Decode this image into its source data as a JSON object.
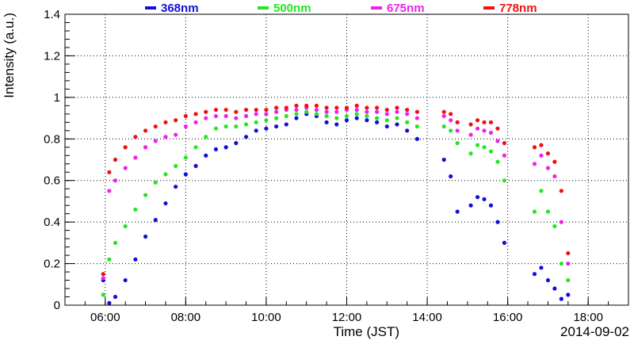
{
  "chart_data": {
    "type": "scatter",
    "title": "",
    "xlabel": "Time (JST)",
    "ylabel": "Intensity (a.u.)",
    "date_label": "2014-09-02",
    "xlim": [
      "05:00",
      "19:00"
    ],
    "ylim": [
      0,
      1.4
    ],
    "x_ticks": [
      "06:00",
      "08:00",
      "10:00",
      "12:00",
      "14:00",
      "16:00",
      "18:00"
    ],
    "y_ticks": [
      "0",
      "0.2",
      "0.4",
      "0.6",
      "0.8",
      "1",
      "1.2",
      "1.4"
    ],
    "grid": true,
    "legend_position": "top",
    "series": [
      {
        "name": "368nm",
        "color": "#1010d8",
        "points": [
          [
            "05:57",
            0.12
          ],
          [
            "06:06",
            0.01
          ],
          [
            "06:15",
            0.04
          ],
          [
            "06:30",
            0.12
          ],
          [
            "06:45",
            0.22
          ],
          [
            "07:00",
            0.33
          ],
          [
            "07:15",
            0.41
          ],
          [
            "07:30",
            0.49
          ],
          [
            "07:45",
            0.57
          ],
          [
            "08:00",
            0.63
          ],
          [
            "08:15",
            0.67
          ],
          [
            "08:30",
            0.72
          ],
          [
            "08:45",
            0.75
          ],
          [
            "09:00",
            0.76
          ],
          [
            "09:15",
            0.78
          ],
          [
            "09:30",
            0.81
          ],
          [
            "09:45",
            0.84
          ],
          [
            "10:00",
            0.85
          ],
          [
            "10:15",
            0.86
          ],
          [
            "10:30",
            0.87
          ],
          [
            "10:45",
            0.9
          ],
          [
            "11:00",
            0.92
          ],
          [
            "11:15",
            0.91
          ],
          [
            "11:30",
            0.88
          ],
          [
            "11:45",
            0.87
          ],
          [
            "12:00",
            0.89
          ],
          [
            "12:15",
            0.9
          ],
          [
            "12:30",
            0.89
          ],
          [
            "12:45",
            0.88
          ],
          [
            "13:00",
            0.86
          ],
          [
            "13:15",
            0.87
          ],
          [
            "13:30",
            0.84
          ],
          [
            "13:45",
            0.8
          ],
          [
            "14:25",
            0.7
          ],
          [
            "14:35",
            0.62
          ],
          [
            "14:45",
            0.45
          ],
          [
            "15:05",
            0.48
          ],
          [
            "15:15",
            0.52
          ],
          [
            "15:25",
            0.51
          ],
          [
            "15:35",
            0.48
          ],
          [
            "15:45",
            0.4
          ],
          [
            "15:55",
            0.3
          ],
          [
            "16:40",
            0.15
          ],
          [
            "16:50",
            0.18
          ],
          [
            "17:00",
            0.12
          ],
          [
            "17:10",
            0.08
          ],
          [
            "17:20",
            0.03
          ],
          [
            "17:30",
            0.05
          ]
        ]
      },
      {
        "name": "500nm",
        "color": "#22e822",
        "points": [
          [
            "05:57",
            0.05
          ],
          [
            "06:06",
            0.22
          ],
          [
            "06:15",
            0.3
          ],
          [
            "06:30",
            0.38
          ],
          [
            "06:45",
            0.46
          ],
          [
            "07:00",
            0.53
          ],
          [
            "07:15",
            0.59
          ],
          [
            "07:30",
            0.63
          ],
          [
            "07:45",
            0.67
          ],
          [
            "08:00",
            0.71
          ],
          [
            "08:15",
            0.76
          ],
          [
            "08:30",
            0.81
          ],
          [
            "08:45",
            0.85
          ],
          [
            "09:00",
            0.86
          ],
          [
            "09:15",
            0.86
          ],
          [
            "09:30",
            0.87
          ],
          [
            "09:45",
            0.88
          ],
          [
            "10:00",
            0.89
          ],
          [
            "10:15",
            0.9
          ],
          [
            "10:30",
            0.91
          ],
          [
            "10:45",
            0.92
          ],
          [
            "11:00",
            0.93
          ],
          [
            "11:15",
            0.92
          ],
          [
            "11:30",
            0.91
          ],
          [
            "11:45",
            0.9
          ],
          [
            "12:00",
            0.91
          ],
          [
            "12:15",
            0.92
          ],
          [
            "12:30",
            0.91
          ],
          [
            "12:45",
            0.9
          ],
          [
            "13:00",
            0.89
          ],
          [
            "13:15",
            0.9
          ],
          [
            "13:30",
            0.88
          ],
          [
            "13:45",
            0.86
          ],
          [
            "14:25",
            0.86
          ],
          [
            "14:35",
            0.84
          ],
          [
            "14:45",
            0.78
          ],
          [
            "15:05",
            0.73
          ],
          [
            "15:15",
            0.77
          ],
          [
            "15:25",
            0.76
          ],
          [
            "15:35",
            0.74
          ],
          [
            "15:45",
            0.69
          ],
          [
            "15:55",
            0.6
          ],
          [
            "16:40",
            0.45
          ],
          [
            "16:50",
            0.55
          ],
          [
            "17:00",
            0.45
          ],
          [
            "17:10",
            0.38
          ],
          [
            "17:20",
            0.2
          ],
          [
            "17:30",
            0.12
          ]
        ]
      },
      {
        "name": "675nm",
        "color": "#f020f0",
        "points": [
          [
            "05:57",
            0.13
          ],
          [
            "06:06",
            0.55
          ],
          [
            "06:15",
            0.6
          ],
          [
            "06:30",
            0.66
          ],
          [
            "06:45",
            0.71
          ],
          [
            "07:00",
            0.76
          ],
          [
            "07:15",
            0.79
          ],
          [
            "07:30",
            0.81
          ],
          [
            "07:45",
            0.82
          ],
          [
            "08:00",
            0.86
          ],
          [
            "08:15",
            0.88
          ],
          [
            "08:30",
            0.9
          ],
          [
            "08:45",
            0.91
          ],
          [
            "09:00",
            0.91
          ],
          [
            "09:15",
            0.9
          ],
          [
            "09:30",
            0.91
          ],
          [
            "09:45",
            0.92
          ],
          [
            "10:00",
            0.92
          ],
          [
            "10:15",
            0.93
          ],
          [
            "10:30",
            0.94
          ],
          [
            "10:45",
            0.94
          ],
          [
            "11:00",
            0.95
          ],
          [
            "11:15",
            0.94
          ],
          [
            "11:30",
            0.93
          ],
          [
            "11:45",
            0.93
          ],
          [
            "12:00",
            0.94
          ],
          [
            "12:15",
            0.94
          ],
          [
            "12:30",
            0.93
          ],
          [
            "12:45",
            0.93
          ],
          [
            "13:00",
            0.92
          ],
          [
            "13:15",
            0.93
          ],
          [
            "13:30",
            0.92
          ],
          [
            "13:45",
            0.9
          ],
          [
            "14:25",
            0.91
          ],
          [
            "14:35",
            0.89
          ],
          [
            "14:45",
            0.84
          ],
          [
            "15:05",
            0.82
          ],
          [
            "15:15",
            0.85
          ],
          [
            "15:25",
            0.84
          ],
          [
            "15:35",
            0.83
          ],
          [
            "15:45",
            0.79
          ],
          [
            "15:55",
            0.72
          ],
          [
            "16:40",
            0.68
          ],
          [
            "16:50",
            0.72
          ],
          [
            "17:00",
            0.66
          ],
          [
            "17:10",
            0.62
          ],
          [
            "17:20",
            0.4
          ],
          [
            "17:30",
            0.2
          ]
        ]
      },
      {
        "name": "778nm",
        "color": "#f01010",
        "points": [
          [
            "05:57",
            0.15
          ],
          [
            "06:06",
            0.64
          ],
          [
            "06:15",
            0.7
          ],
          [
            "06:30",
            0.76
          ],
          [
            "06:45",
            0.81
          ],
          [
            "07:00",
            0.84
          ],
          [
            "07:15",
            0.86
          ],
          [
            "07:30",
            0.88
          ],
          [
            "07:45",
            0.89
          ],
          [
            "08:00",
            0.91
          ],
          [
            "08:15",
            0.92
          ],
          [
            "08:30",
            0.93
          ],
          [
            "08:45",
            0.94
          ],
          [
            "09:00",
            0.94
          ],
          [
            "09:15",
            0.93
          ],
          [
            "09:30",
            0.94
          ],
          [
            "09:45",
            0.94
          ],
          [
            "10:00",
            0.94
          ],
          [
            "10:15",
            0.95
          ],
          [
            "10:30",
            0.95
          ],
          [
            "10:45",
            0.96
          ],
          [
            "11:00",
            0.96
          ],
          [
            "11:15",
            0.96
          ],
          [
            "11:30",
            0.95
          ],
          [
            "11:45",
            0.95
          ],
          [
            "12:00",
            0.95
          ],
          [
            "12:15",
            0.96
          ],
          [
            "12:30",
            0.95
          ],
          [
            "12:45",
            0.95
          ],
          [
            "13:00",
            0.94
          ],
          [
            "13:15",
            0.95
          ],
          [
            "13:30",
            0.94
          ],
          [
            "13:45",
            0.93
          ],
          [
            "14:25",
            0.93
          ],
          [
            "14:35",
            0.92
          ],
          [
            "14:45",
            0.88
          ],
          [
            "15:05",
            0.87
          ],
          [
            "15:15",
            0.89
          ],
          [
            "15:25",
            0.88
          ],
          [
            "15:35",
            0.88
          ],
          [
            "15:45",
            0.85
          ],
          [
            "15:55",
            0.78
          ],
          [
            "16:40",
            0.76
          ],
          [
            "16:50",
            0.77
          ],
          [
            "17:00",
            0.73
          ],
          [
            "17:10",
            0.69
          ],
          [
            "17:20",
            0.55
          ],
          [
            "17:30",
            0.25
          ]
        ]
      }
    ]
  }
}
